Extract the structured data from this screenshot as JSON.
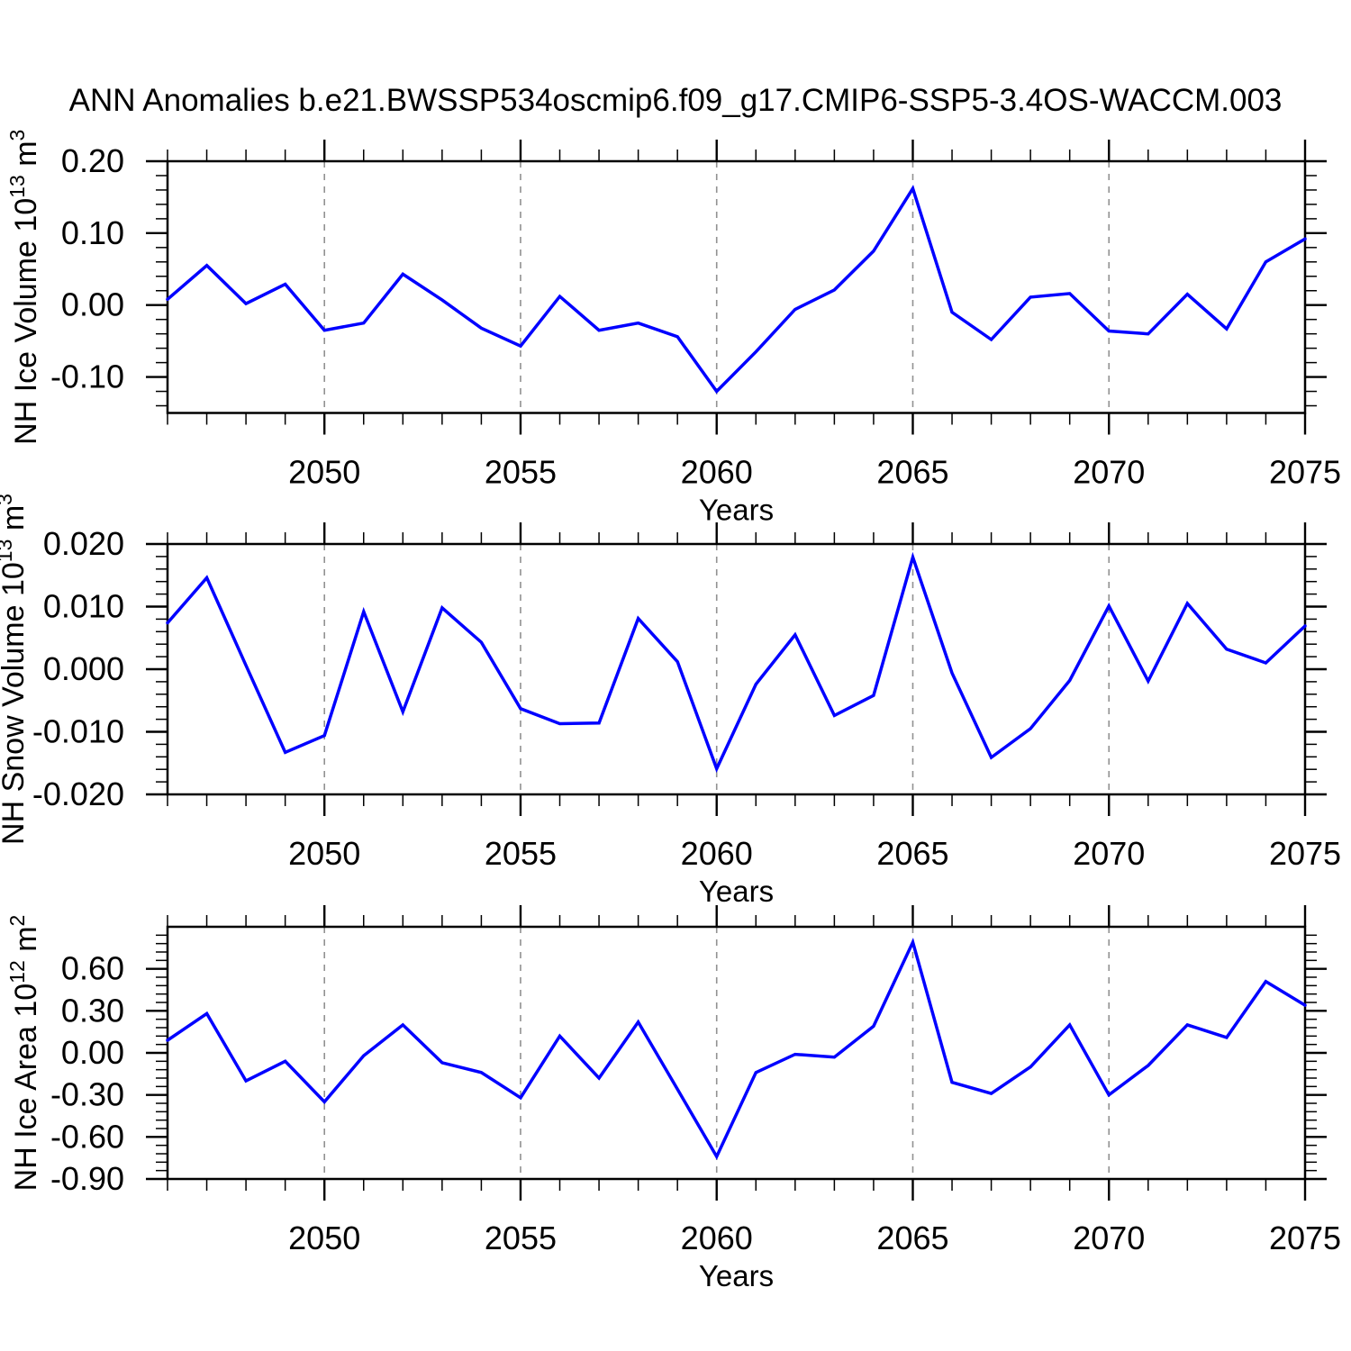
{
  "title": "ANN Anomalies b.e21.BWSSP534oscmip6.f09_g17.CMIP6-SSP5-3.4OS-WACCM.003",
  "style": {
    "line_color": "#0000ff",
    "grid_color": "#919191",
    "axis_color": "#000000",
    "background": "#ffffff"
  },
  "x_axis": {
    "label": "Years",
    "start": 2046,
    "end": 2075,
    "major_ticks": [
      2050,
      2055,
      2060,
      2065,
      2070,
      2075
    ],
    "minor_step": 1,
    "years": [
      2046,
      2047,
      2048,
      2049,
      2050,
      2051,
      2052,
      2053,
      2054,
      2055,
      2056,
      2057,
      2058,
      2059,
      2060,
      2061,
      2062,
      2063,
      2064,
      2065,
      2066,
      2067,
      2068,
      2069,
      2070,
      2071,
      2072,
      2073,
      2074,
      2075
    ]
  },
  "chart_data": [
    {
      "type": "line",
      "name": "nh-ice-volume",
      "ylabel_text": "NH Ice Volume 10^13 m^3",
      "ylabel_parts": [
        {
          "t": "NH Ice Volume 10"
        },
        {
          "t": "13",
          "sup": true
        },
        {
          "t": " m"
        },
        {
          "t": "3",
          "sup": true
        }
      ],
      "ylim": [
        -0.15,
        0.2
      ],
      "ymajor": 0.1,
      "yminor": 0.02,
      "ytick_labels": [
        {
          "v": 0.2,
          "t": "0.20"
        },
        {
          "v": 0.1,
          "t": "0.10"
        },
        {
          "v": 0.0,
          "t": "0.00"
        },
        {
          "v": -0.1,
          "t": "-0.10"
        }
      ],
      "values": [
        0.008,
        0.055,
        0.002,
        0.029,
        -0.035,
        -0.025,
        0.043,
        0.007,
        -0.032,
        -0.057,
        0.012,
        -0.035,
        -0.025,
        -0.044,
        -0.12,
        -0.065,
        -0.006,
        0.021,
        0.075,
        0.162,
        -0.01,
        -0.048,
        0.011,
        0.016,
        -0.036,
        -0.04,
        0.015,
        -0.033,
        0.06,
        0.092
      ]
    },
    {
      "type": "line",
      "name": "nh-snow-volume",
      "ylabel_text": "NH Snow Volume 10^13 m^3",
      "ylabel_parts": [
        {
          "t": "NH Snow Volume 10"
        },
        {
          "t": "13",
          "sup": true
        },
        {
          "t": " m"
        },
        {
          "t": "3",
          "sup": true
        }
      ],
      "ylim": [
        -0.02,
        0.02
      ],
      "ymajor": 0.01,
      "yminor": 0.002,
      "ytick_labels": [
        {
          "v": 0.02,
          "t": "0.020"
        },
        {
          "v": 0.01,
          "t": "0.010"
        },
        {
          "v": 0.0,
          "t": "0.000"
        },
        {
          "v": -0.01,
          "t": "-0.010"
        },
        {
          "v": -0.02,
          "t": "-0.020"
        }
      ],
      "values": [
        0.0074,
        0.0146,
        0.0006,
        -0.0133,
        -0.0106,
        0.0092,
        -0.0068,
        0.0098,
        0.0043,
        -0.0063,
        -0.0087,
        -0.0086,
        0.0081,
        0.0012,
        -0.0159,
        -0.0024,
        0.0055,
        -0.0074,
        -0.0042,
        0.0179,
        -0.0006,
        -0.0141,
        -0.0095,
        -0.0018,
        0.0101,
        -0.0019,
        0.0105,
        0.0032,
        0.001,
        0.0069
      ]
    },
    {
      "type": "line",
      "name": "nh-ice-area",
      "ylabel_text": "NH Ice Area 10^12 m^2",
      "ylabel_parts": [
        {
          "t": "NH Ice Area 10"
        },
        {
          "t": "12",
          "sup": true
        },
        {
          "t": " m"
        },
        {
          "t": "2",
          "sup": true
        }
      ],
      "ylim": [
        -0.9,
        0.9
      ],
      "ymajor": 0.3,
      "yminor": 0.06,
      "ytick_labels": [
        {
          "v": 0.6,
          "t": "0.60"
        },
        {
          "v": 0.3,
          "t": "0.30"
        },
        {
          "v": 0.0,
          "t": "0.00"
        },
        {
          "v": -0.3,
          "t": "-0.30"
        },
        {
          "v": -0.6,
          "t": "-0.60"
        },
        {
          "v": -0.9,
          "t": "-0.90"
        }
      ],
      "values": [
        0.09,
        0.28,
        -0.2,
        -0.06,
        -0.35,
        -0.02,
        0.2,
        -0.07,
        -0.14,
        -0.32,
        0.12,
        -0.18,
        0.22,
        -0.26,
        -0.74,
        -0.14,
        -0.01,
        -0.03,
        0.19,
        0.79,
        -0.21,
        -0.29,
        -0.1,
        0.2,
        -0.3,
        -0.09,
        0.2,
        0.11,
        0.51,
        0.34
      ]
    }
  ]
}
